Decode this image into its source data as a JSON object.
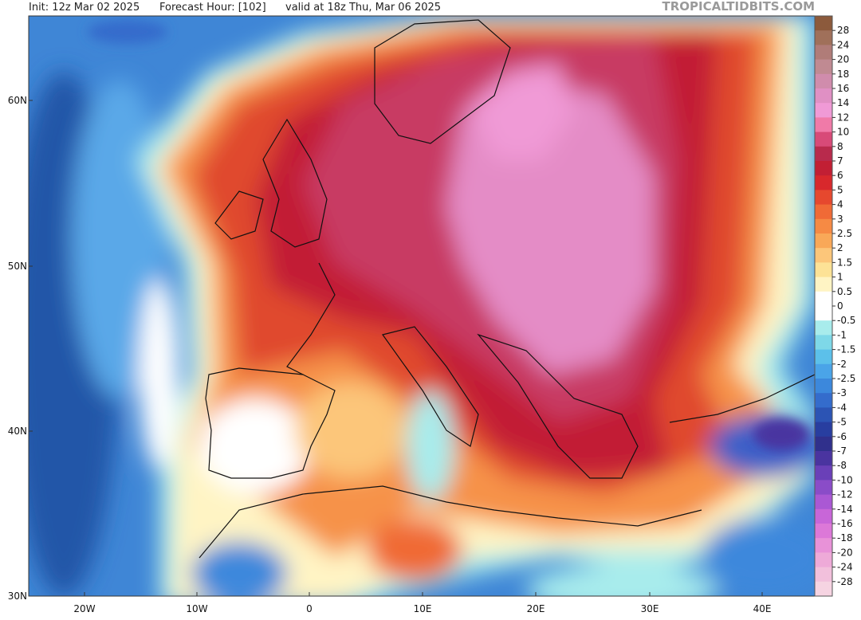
{
  "header": {
    "init": "Init: 12z Mar 02 2025",
    "forecast_hour": "Forecast Hour: [102]",
    "valid": "valid at 18z Thu, Mar 06 2025",
    "source": "TROPICALTIDBITS.COM"
  },
  "map": {
    "lat_labels": [
      "60N",
      "50N",
      "40N",
      "30N"
    ],
    "lon_labels": [
      "20W",
      "10W",
      "0",
      "10E",
      "20E",
      "30E",
      "40E"
    ]
  },
  "colorbar": {
    "labels": [
      28,
      24,
      20,
      18,
      16,
      14,
      12,
      10,
      8,
      7,
      6,
      5,
      4,
      3,
      2.5,
      2,
      1.5,
      1,
      0.5,
      0,
      -0.5,
      -1,
      -1.5,
      -2,
      -2.5,
      -3,
      -4,
      -5,
      -6,
      -7,
      -8,
      -10,
      -12,
      -14,
      -16,
      -18,
      -20,
      -24,
      -28
    ],
    "colors": [
      "#8c5a3c",
      "#a0705a",
      "#b07c78",
      "#c08a92",
      "#d08cac",
      "#e090c4",
      "#f09ad6",
      "#f07aa8",
      "#d84a78",
      "#b82a4c",
      "#c21f34",
      "#d8282c",
      "#e6482e",
      "#f06a36",
      "#f68a44",
      "#f9a858",
      "#fcc67a",
      "#fde296",
      "#fff4c4",
      "#ffffff",
      "#ffffff",
      "#a8ecec",
      "#7ed8e8",
      "#5cc0ea",
      "#4aa4e8",
      "#3c88dc",
      "#346ccc",
      "#2c54b4",
      "#283ea0",
      "#30308c",
      "#4a34a0",
      "#6a40b8",
      "#8a4cc8",
      "#aa58d4",
      "#c866d8",
      "#dc78d8",
      "#e892d8",
      "#eeaad8",
      "#f2c0dc",
      "#f6d4e2"
    ]
  }
}
